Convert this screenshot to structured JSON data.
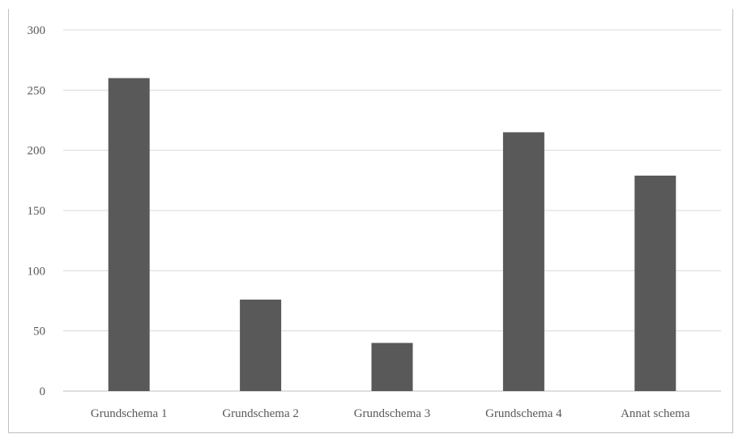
{
  "caption": "",
  "chart_data": {
    "type": "bar",
    "title": "",
    "xlabel": "",
    "ylabel": "",
    "categories": [
      "Grundschema 1",
      "Grundschema 2",
      "Grundschema 3",
      "Grundschema 4",
      "Annat schema"
    ],
    "values": [
      260,
      76,
      40,
      215,
      179
    ],
    "ylim": [
      0,
      300
    ],
    "yticks": [
      0,
      50,
      100,
      150,
      200,
      250,
      300
    ],
    "grid": true,
    "legend": "none",
    "bar_color": "#595959",
    "grid_color": "#d9d9d9",
    "text_color": "#595959"
  }
}
